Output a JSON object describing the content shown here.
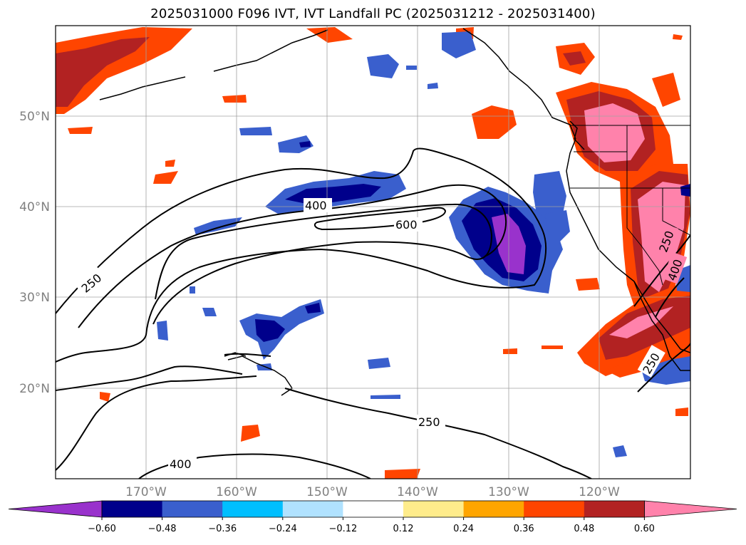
{
  "title": "2025031000 F096 IVT, IVT Landfall PC (2025031212 - 2025031400)",
  "lat_labels": [
    "50°N",
    "40°N",
    "30°N",
    "20°N"
  ],
  "lon_labels": [
    "170°W",
    "160°W",
    "150°W",
    "140°W",
    "130°W",
    "120°W"
  ],
  "contour_labels": [
    "250",
    "400",
    "600",
    "250",
    "400",
    "250",
    "250",
    "400"
  ],
  "colorbar": {
    "colors": [
      "#9932CC",
      "#00008B",
      "#3A5FCD",
      "#00BFFF",
      "#B0E2FF",
      "#FFFFFF",
      "#FFEC8B",
      "#FFA500",
      "#FF4500",
      "#B22222",
      "#FF82AB"
    ],
    "tick_labels": [
      "−0.60",
      "−0.48",
      "−0.36",
      "−0.24",
      "−0.12",
      "0.12",
      "0.24",
      "0.36",
      "0.48",
      "0.60"
    ]
  },
  "map": {
    "lon_range": [
      -180,
      -110
    ],
    "lat_range": [
      10,
      60
    ],
    "ivt_contour_levels": [
      250,
      400,
      600
    ],
    "gridlines": true
  }
}
